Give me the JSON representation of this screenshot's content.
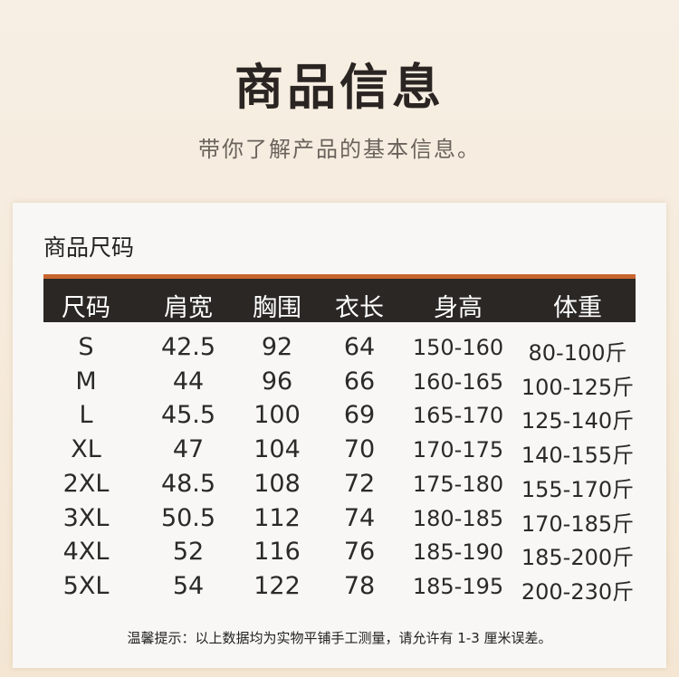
{
  "header": {
    "title": "商品信息",
    "subtitle": "带你了解产品的基本信息。"
  },
  "table": {
    "section_title": "商品尺码",
    "columns": [
      "尺码",
      "肩宽",
      "胸围",
      "衣长",
      "身高",
      "体重"
    ],
    "rows": [
      [
        "S",
        "42.5",
        "92",
        "64",
        "150-160",
        "80-100斤"
      ],
      [
        "M",
        "44",
        "96",
        "66",
        "160-165",
        "100-125斤"
      ],
      [
        "L",
        "45.5",
        "100",
        "69",
        "165-170",
        "125-140斤"
      ],
      [
        "XL",
        "47",
        "104",
        "70",
        "170-175",
        "140-155斤"
      ],
      [
        "2XL",
        "48.5",
        "108",
        "72",
        "175-180",
        "155-170斤"
      ],
      [
        "3XL",
        "50.5",
        "112",
        "74",
        "180-185",
        "170-185斤"
      ],
      [
        "4XL",
        "52",
        "116",
        "76",
        "185-190",
        "185-200斤"
      ],
      [
        "5XL",
        "54",
        "122",
        "78",
        "185-195",
        "200-230斤"
      ]
    ],
    "note": "温馨提示：以上数据均为实物平铺手工测量，请允许有 1-3 厘米误差。"
  },
  "colors": {
    "accent": "#c8652f",
    "header_bg": "#2a2725"
  }
}
